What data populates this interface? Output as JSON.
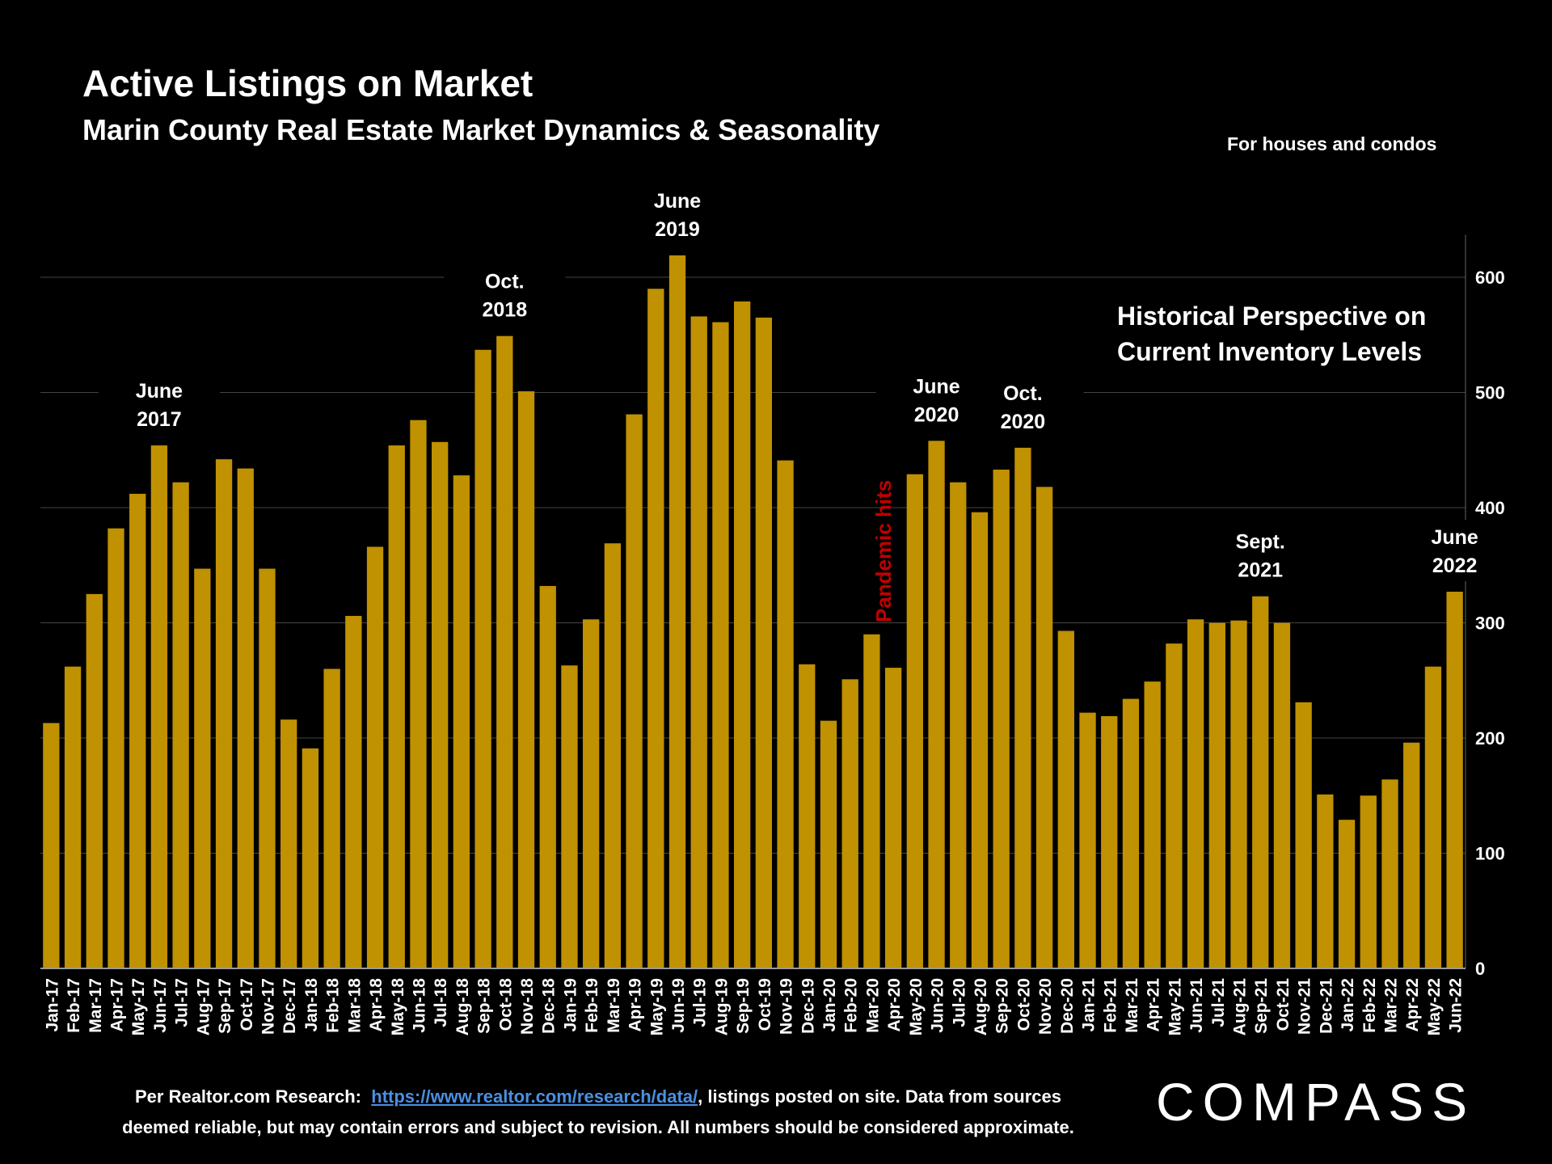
{
  "header": {
    "title": "Active Listings on Market",
    "subtitle": "Marin County Real Estate Market Dynamics & Seasonality",
    "note": "For houses and condos"
  },
  "footer": {
    "prefix": "Per Realtor.com Research:",
    "link": "https://www.realtor.com/research/data/",
    "suffix": ", listings posted on site. Data from sources",
    "line2": "deemed reliable, but may contain errors and subject to revision. All numbers should be considered approximate."
  },
  "logo": "COMPASS",
  "colors": {
    "bar": "#c09100",
    "grid": "#444444",
    "pandemic": "#c00000",
    "background": "#000000"
  },
  "chart_data": {
    "type": "bar",
    "y_axis_position": "right",
    "ylim": [
      0,
      630
    ],
    "yticks": [
      0,
      100,
      200,
      300,
      400,
      500,
      600
    ],
    "grid": true,
    "categories": [
      "Jan-17",
      "Feb-17",
      "Mar-17",
      "Apr-17",
      "May-17",
      "Jun-17",
      "Jul-17",
      "Aug-17",
      "Sep-17",
      "Oct-17",
      "Nov-17",
      "Dec-17",
      "Jan-18",
      "Feb-18",
      "Mar-18",
      "Apr-18",
      "May-18",
      "Jun-18",
      "Jul-18",
      "Aug-18",
      "Sep-18",
      "Oct-18",
      "Nov-18",
      "Dec-18",
      "Jan-19",
      "Feb-19",
      "Mar-19",
      "Apr-19",
      "May-19",
      "Jun-19",
      "Jul-19",
      "Aug-19",
      "Sep-19",
      "Oct-19",
      "Nov-19",
      "Dec-19",
      "Jan-20",
      "Feb-20",
      "Mar-20",
      "Apr-20",
      "May-20",
      "Jun-20",
      "Jul-20",
      "Aug-20",
      "Sep-20",
      "Oct-20",
      "Nov-20",
      "Dec-20",
      "Jan-21",
      "Feb-21",
      "Mar-21",
      "Apr-21",
      "May-21",
      "Jun-21",
      "Jul-21",
      "Aug-21",
      "Sep-21",
      "Oct-21",
      "Nov-21",
      "Dec-21",
      "Jan-22",
      "Feb-22",
      "Mar-22",
      "Apr-22",
      "May-22",
      "Jun-22"
    ],
    "values": [
      213,
      262,
      325,
      382,
      412,
      454,
      422,
      347,
      442,
      434,
      347,
      216,
      191,
      260,
      306,
      366,
      454,
      476,
      457,
      428,
      537,
      549,
      501,
      332,
      263,
      303,
      369,
      481,
      590,
      619,
      566,
      561,
      579,
      565,
      441,
      264,
      215,
      251,
      290,
      261,
      429,
      458,
      422,
      396,
      433,
      452,
      418,
      293,
      222,
      219,
      234,
      249,
      282,
      303,
      300,
      302,
      323,
      300,
      231,
      151,
      129,
      150,
      164,
      196,
      262,
      327
    ],
    "annotations": [
      {
        "index": 5,
        "lines": [
          "June",
          "2017"
        ],
        "value": 454
      },
      {
        "index": 21,
        "lines": [
          "Oct.",
          "2018"
        ],
        "value": 549
      },
      {
        "index": 29,
        "lines": [
          "June",
          "2019"
        ],
        "value": 619
      },
      {
        "index": 41,
        "lines": [
          "June",
          "2020"
        ],
        "value": 458
      },
      {
        "index": 45,
        "lines": [
          "Oct.",
          "2020"
        ],
        "value": 452
      },
      {
        "index": 56,
        "lines": [
          "Sept.",
          "2021"
        ],
        "value": 323
      },
      {
        "index": 65,
        "lines": [
          "June",
          "2022"
        ],
        "value": 327
      }
    ],
    "callout": [
      "Historical Perspective on",
      "Current Inventory Levels"
    ],
    "event_label": {
      "text": "Pandemic hits",
      "index": 38.5
    }
  }
}
